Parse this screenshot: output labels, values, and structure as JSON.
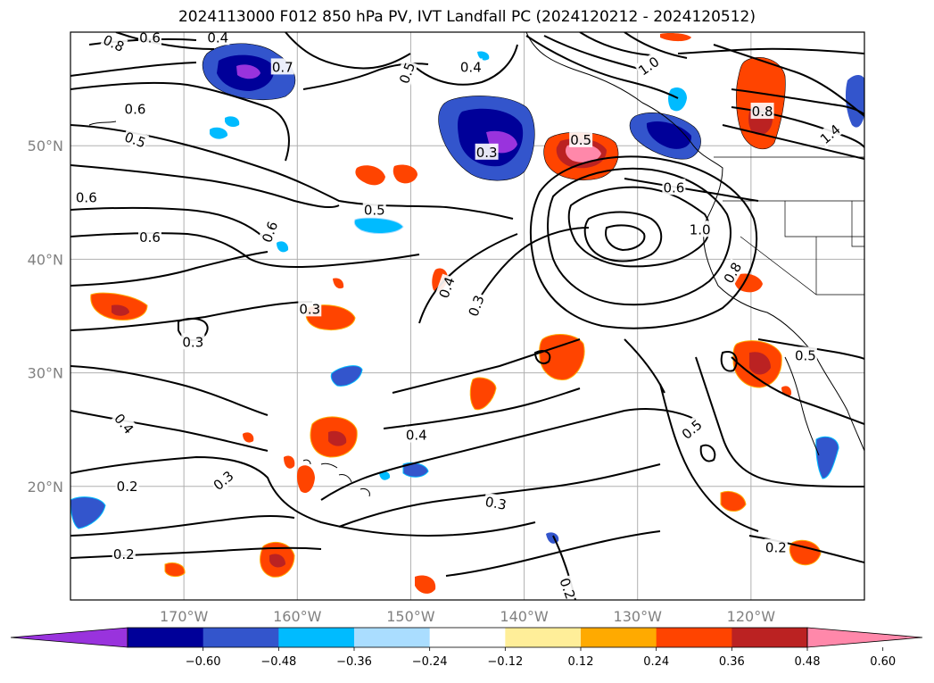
{
  "title": "2024113000 F012 850 hPa PV, IVT Landfall PC (2024120212 - 2024120512)",
  "map": {
    "lon_range": [
      -180,
      -110
    ],
    "lat_range": [
      10,
      60
    ],
    "lat_ticks": [
      {
        "value": 20,
        "label": "20°N"
      },
      {
        "value": 30,
        "label": "30°N"
      },
      {
        "value": 40,
        "label": "40°N"
      },
      {
        "value": 50,
        "label": "50°N"
      }
    ],
    "lon_ticks": [
      {
        "value": -170,
        "label": "170°W"
      },
      {
        "value": -160,
        "label": "160°W"
      },
      {
        "value": -150,
        "label": "150°W"
      },
      {
        "value": -140,
        "label": "140°W"
      },
      {
        "value": -130,
        "label": "130°W"
      },
      {
        "value": -120,
        "label": "120°W"
      }
    ],
    "gridlines": true
  },
  "contour_labels": [
    {
      "text": "0.8",
      "lon": -176.2,
      "lat": 59.0,
      "rot": 25
    },
    {
      "text": "0.6",
      "lon": -173.0,
      "lat": 59.5,
      "rot": 0
    },
    {
      "text": "0.4",
      "lon": -167.0,
      "lat": 59.5,
      "rot": 0
    },
    {
      "text": "0.7",
      "lon": -161.3,
      "lat": 56.9,
      "rot": 0
    },
    {
      "text": "0.5",
      "lon": -174.3,
      "lat": 50.5,
      "rot": 20
    },
    {
      "text": "0.6",
      "lon": -174.3,
      "lat": 53.2,
      "rot": 0
    },
    {
      "text": "0.5",
      "lon": -150.3,
      "lat": 56.4,
      "rot": -70
    },
    {
      "text": "0.4",
      "lon": -144.7,
      "lat": 56.9,
      "rot": 0
    },
    {
      "text": "0.5",
      "lon": -135.0,
      "lat": 50.5,
      "rot": 0
    },
    {
      "text": "0.3",
      "lon": -143.3,
      "lat": 49.4,
      "rot": 0
    },
    {
      "text": "1.0",
      "lon": -129.0,
      "lat": 57.0,
      "rot": -35
    },
    {
      "text": "1.4",
      "lon": -113.0,
      "lat": 51.0,
      "rot": -40
    },
    {
      "text": "0.8",
      "lon": -119.0,
      "lat": 53.0,
      "rot": 0
    },
    {
      "text": "0.6",
      "lon": -126.8,
      "lat": 46.3,
      "rot": 0
    },
    {
      "text": "1.0",
      "lon": -124.5,
      "lat": 42.6,
      "rot": 0
    },
    {
      "text": "0.8",
      "lon": -121.6,
      "lat": 38.8,
      "rot": -60
    },
    {
      "text": "0.5",
      "lon": -153.2,
      "lat": 44.3,
      "rot": 0
    },
    {
      "text": "0.6",
      "lon": -178.6,
      "lat": 45.4,
      "rot": 0
    },
    {
      "text": "0.6",
      "lon": -173.0,
      "lat": 41.9,
      "rot": 0
    },
    {
      "text": "0.6",
      "lon": -162.4,
      "lat": 42.4,
      "rot": -70
    },
    {
      "text": "0.4",
      "lon": -146.8,
      "lat": 37.5,
      "rot": -70
    },
    {
      "text": "0.3",
      "lon": -144.2,
      "lat": 35.9,
      "rot": -70
    },
    {
      "text": "0.3",
      "lon": -158.9,
      "lat": 35.6,
      "rot": 0
    },
    {
      "text": "0.3",
      "lon": -169.2,
      "lat": 32.7,
      "rot": 0
    },
    {
      "text": "0.4",
      "lon": -175.3,
      "lat": 25.5,
      "rot": 50
    },
    {
      "text": "0.3",
      "lon": -166.5,
      "lat": 20.5,
      "rot": -40
    },
    {
      "text": "0.2",
      "lon": -175.0,
      "lat": 20.0,
      "rot": 0
    },
    {
      "text": "0.4",
      "lon": -149.5,
      "lat": 24.5,
      "rot": 0
    },
    {
      "text": "0.3",
      "lon": -142.5,
      "lat": 18.5,
      "rot": 10
    },
    {
      "text": "0.5",
      "lon": -125.2,
      "lat": 25.0,
      "rot": -40
    },
    {
      "text": "0.5",
      "lon": -115.2,
      "lat": 31.5,
      "rot": 0
    },
    {
      "text": "0.2",
      "lon": -175.3,
      "lat": 14.0,
      "rot": 0
    },
    {
      "text": "0.2",
      "lon": -117.8,
      "lat": 14.6,
      "rot": 0
    },
    {
      "text": "0.2",
      "lon": -136.2,
      "lat": 11.0,
      "rot": 70
    }
  ],
  "colorbar": {
    "colors": [
      "#9933dd",
      "#000099",
      "#3355cc",
      "#00bbff",
      "#aaddff",
      "#ffffff",
      "#ffee99",
      "#ffaa00",
      "#ff4400",
      "#bb2222",
      "#ff88aa"
    ],
    "tick_labels": [
      "−0.60",
      "−0.48",
      "−0.36",
      "−0.24",
      "−0.12",
      "0.12",
      "0.24",
      "0.36",
      "0.48",
      "0.60"
    ],
    "extend": "both"
  }
}
